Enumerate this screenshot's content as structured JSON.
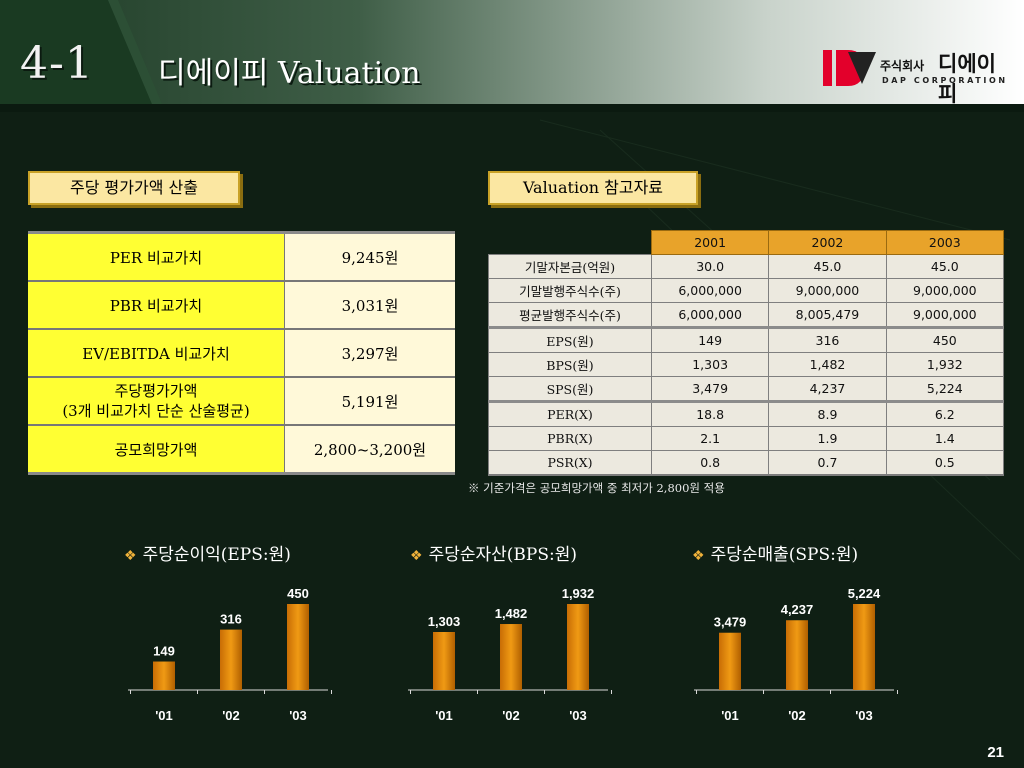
{
  "header": {
    "section_number": "4-1",
    "title": "디에이피 Valuation",
    "logo": {
      "brand_kor": "주식회사 디에이피",
      "brand_small": "주식회사",
      "brand_main": "디에이피",
      "brand_eng": "DAP CORPORATION",
      "mark_color": "#e3002b"
    }
  },
  "left_panel": {
    "label": "주당 평가가액 산출",
    "rows": [
      {
        "key": "PER  비교가치",
        "value": "9,245원"
      },
      {
        "key": "PBR 비교가치",
        "value": "3,031원"
      },
      {
        "key": "EV/EBITDA 비교가치",
        "value": "3,297원"
      },
      {
        "key_line1": "주당평가가액",
        "key_line2": "(3개 비교가치 단순 산술평균)",
        "value": "5,191원"
      },
      {
        "key": "공모희망가액",
        "value": "2,800~3,200원"
      }
    ]
  },
  "right_panel": {
    "label": "Valuation 참고자료",
    "years": [
      "2001",
      "2002",
      "2003"
    ],
    "rows": [
      {
        "key": "기말자본금(억원)",
        "values": [
          "30.0",
          "45.0",
          "45.0"
        ]
      },
      {
        "key": "기말발행주식수(주)",
        "values": [
          "6,000,000",
          "9,000,000",
          "9,000,000"
        ]
      },
      {
        "key": "평균발행주식수(주)",
        "values": [
          "6,000,000",
          "8,005,479",
          "9,000,000"
        ]
      },
      {
        "key": "EPS(원)",
        "values": [
          "149",
          "316",
          "450"
        ]
      },
      {
        "key": "BPS(원)",
        "values": [
          "1,303",
          "1,482",
          "1,932"
        ]
      },
      {
        "key": "SPS(원)",
        "values": [
          "3,479",
          "4,237",
          "5,224"
        ]
      },
      {
        "key": "PER(X)",
        "values": [
          "18.8",
          "8.9",
          "6.2"
        ]
      },
      {
        "key": "PBR(X)",
        "values": [
          "2.1",
          "1.9",
          "1.4"
        ]
      },
      {
        "key": "PSR(X)",
        "values": [
          "0.8",
          "0.7",
          "0.5"
        ]
      }
    ],
    "note": "※ 기준가격은 공모희망가액 중 최저가 2,800원 적용"
  },
  "chart_data": [
    {
      "type": "bar",
      "title": "주당순이익(EPS:원)",
      "categories": [
        "'01",
        "'02",
        "'03"
      ],
      "values": [
        149,
        316,
        450
      ],
      "labels": [
        "149",
        "316",
        "450"
      ],
      "ylim": [
        0,
        450
      ],
      "bar_color": "#f09a14"
    },
    {
      "type": "bar",
      "title": "주당순자산(BPS:원)",
      "categories": [
        "'01",
        "'02",
        "'03"
      ],
      "values": [
        1303,
        1482,
        1932
      ],
      "labels": [
        "1,303",
        "1,482",
        "1,932"
      ],
      "ylim": [
        0,
        1932
      ],
      "bar_color": "#f09a14"
    },
    {
      "type": "bar",
      "title": "주당순매출(SPS:원)",
      "categories": [
        "'01",
        "'02",
        "'03"
      ],
      "values": [
        3479,
        4237,
        5224
      ],
      "labels": [
        "3,479",
        "4,237",
        "5,224"
      ],
      "ylim": [
        0,
        5224
      ],
      "bar_color": "#f09a14"
    }
  ],
  "page_number": "21"
}
